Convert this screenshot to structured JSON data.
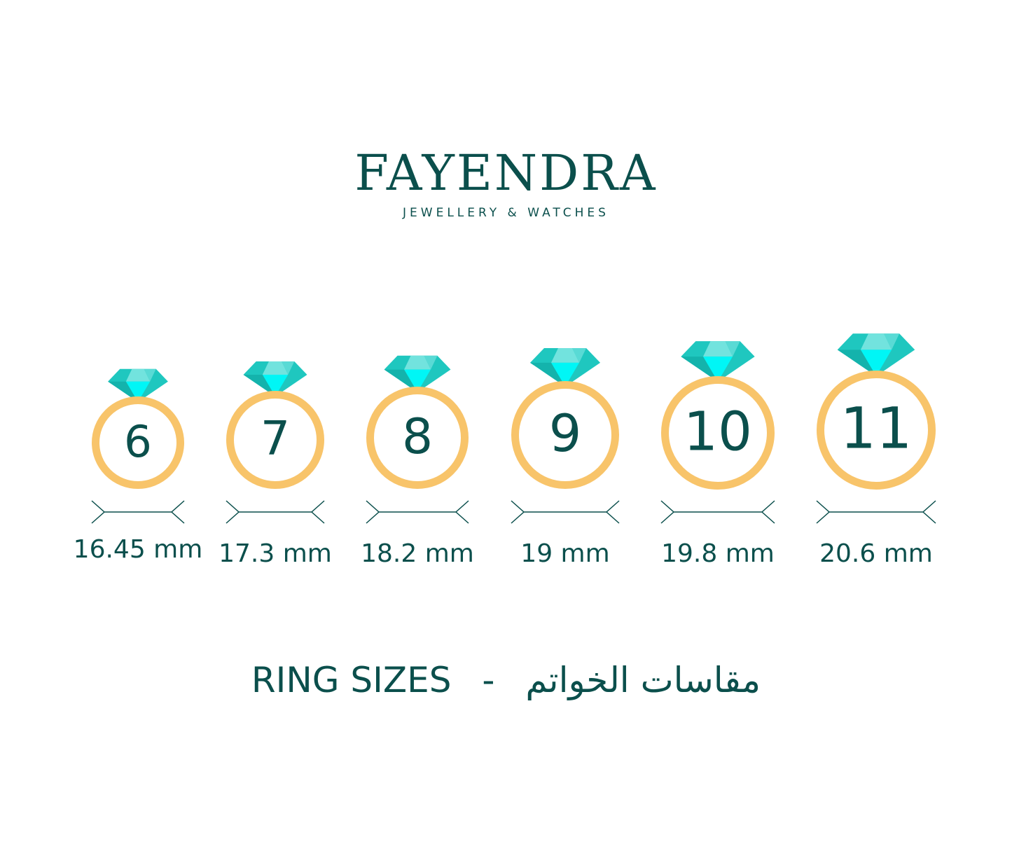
{
  "brand": {
    "name": "FAYENDRA",
    "tagline": "JEWELLERY & WATCHES"
  },
  "rings": [
    {
      "size": "6",
      "diameter": "16.45 mm"
    },
    {
      "size": "7",
      "diameter": "17.3 mm"
    },
    {
      "size": "8",
      "diameter": "18.2 mm"
    },
    {
      "size": "9",
      "diameter": "19 mm"
    },
    {
      "size": "10",
      "diameter": "19.8 mm"
    },
    {
      "size": "11",
      "diameter": "20.6 mm"
    }
  ],
  "title": {
    "english": "RING SIZES",
    "separator": "-",
    "arabic": "مقاسات الخواتم"
  },
  "colors": {
    "text": "#0b4f4c",
    "ring": "#f8c46a",
    "gem": "#1fc7bf",
    "gem_light": "#72e3de",
    "gem_center": "#00f6f6"
  }
}
